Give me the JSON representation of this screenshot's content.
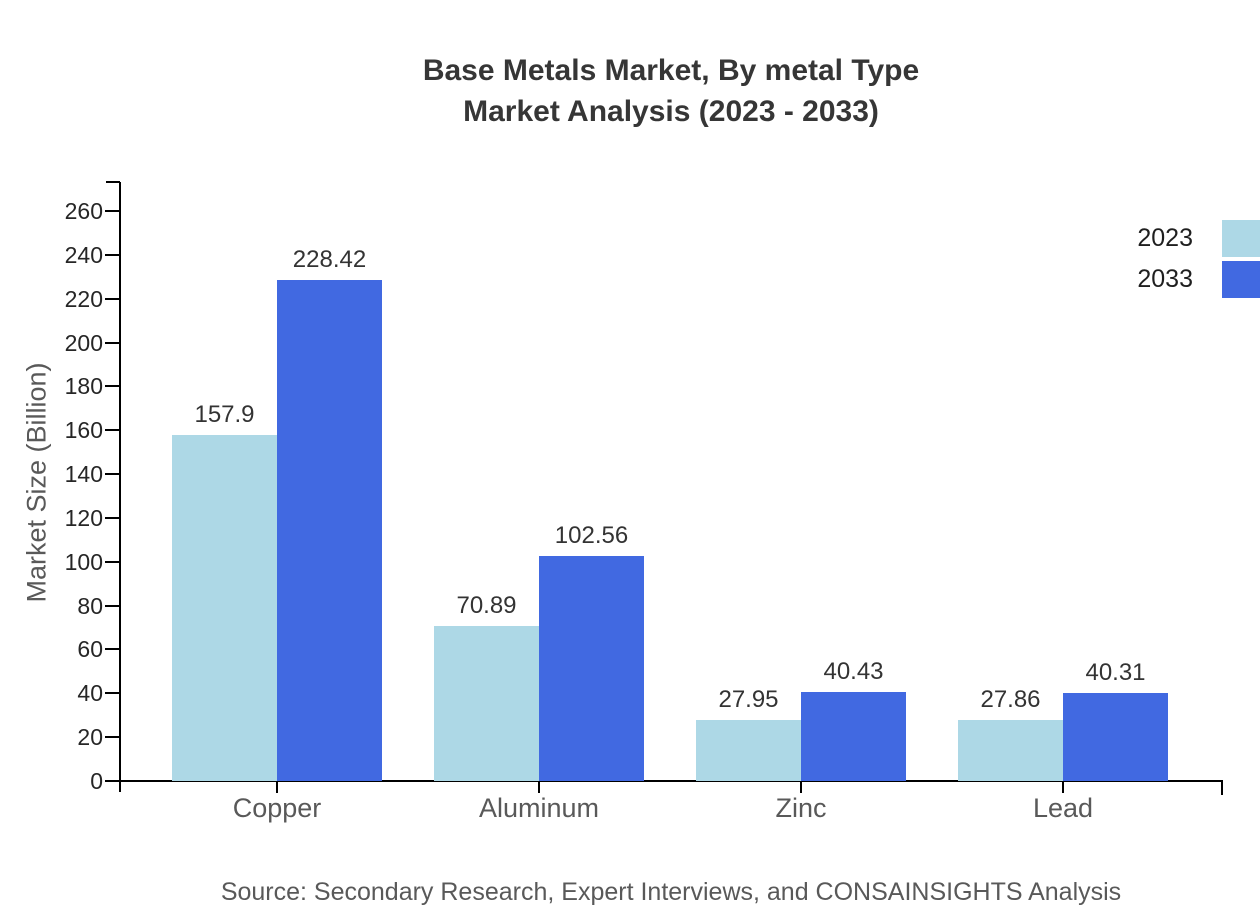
{
  "title": {
    "line1": "Base Metals Market, By metal Type",
    "line2": "Market Analysis (2023 - 2033)"
  },
  "source": "Source: Secondary Research, Expert Interviews, and CONSAINSIGHTS Analysis",
  "chart_data": {
    "type": "bar",
    "title": "Base Metals Market, By metal Type Market Analysis (2023 - 2033)",
    "categories": [
      "Copper",
      "Aluminum",
      "Zinc",
      "Lead"
    ],
    "series": [
      {
        "name": "2023",
        "color": "#ADD8E6",
        "values": [
          157.9,
          70.89,
          27.95,
          27.86
        ],
        "labels": [
          "157.9",
          "70.89",
          "27.95",
          "27.86"
        ]
      },
      {
        "name": "2033",
        "color": "#4169E1",
        "values": [
          228.42,
          102.56,
          40.43,
          40.31
        ],
        "labels": [
          "228.42",
          "102.56",
          "40.43",
          "40.31"
        ]
      }
    ],
    "xlabel": "",
    "ylabel": "Market Size (Billion)",
    "ylim": [
      0,
      260
    ],
    "ytick_step": 20,
    "yticks": [
      0,
      20,
      40,
      60,
      80,
      100,
      120,
      140,
      160,
      180,
      200,
      220,
      240,
      260
    ],
    "grid": false,
    "legend_position": "top-right",
    "colors": {
      "axis": "#000000",
      "title_text": "#363636",
      "label_text": "#333333",
      "muted_text": "#595959"
    }
  }
}
